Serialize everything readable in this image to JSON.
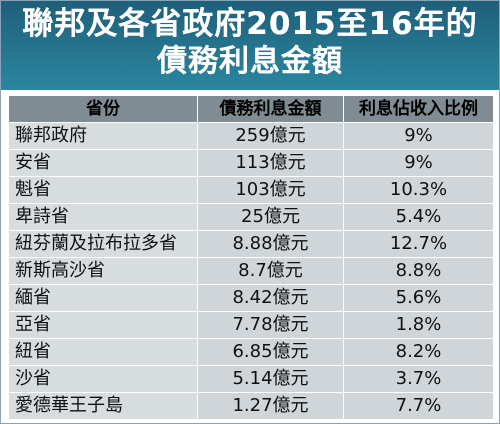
{
  "title": {
    "line1": "聯邦及各省政府2015至16年的",
    "line2": "債務利息金額"
  },
  "table": {
    "headers": [
      "省份",
      "債務利息金額",
      "利息佔收入比例"
    ],
    "rows": [
      [
        "聯邦政府",
        "259億元",
        "9%"
      ],
      [
        "安省",
        "113億元",
        "9%"
      ],
      [
        "魁省",
        "103億元",
        "10.3%"
      ],
      [
        "卑詩省",
        "25億元",
        "5.4%"
      ],
      [
        "紐芬蘭及拉布拉多省",
        "8.88億元",
        "12.7%"
      ],
      [
        "新斯高沙省",
        "8.7億元",
        "8.8%"
      ],
      [
        "緬省",
        "8.42億元",
        "5.6%"
      ],
      [
        "亞省",
        "7.78億元",
        "1.8%"
      ],
      [
        "紐省",
        "6.85億元",
        "8.2%"
      ],
      [
        "沙省",
        "5.14億元",
        "3.7%"
      ],
      [
        "愛德華王子島",
        "1.27億元",
        "7.7%"
      ]
    ]
  },
  "colors": {
    "header_bg_top": "#1f5f7a",
    "header_bg_bottom": "#2b86a0",
    "column_header_bg": "#7f8c93",
    "row_bg": "#cfd5d8"
  }
}
